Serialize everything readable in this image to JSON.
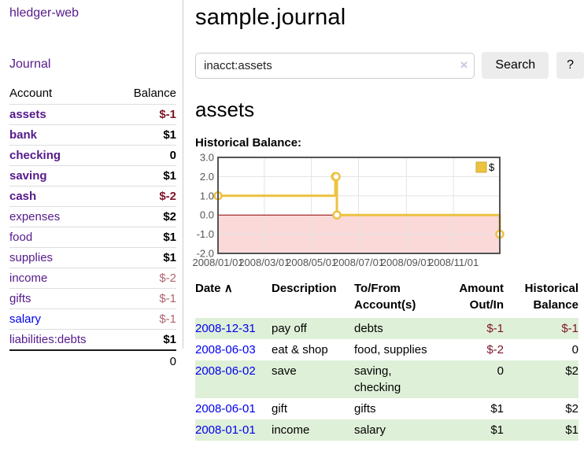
{
  "sidebar": {
    "brand": "hledger-web",
    "nav": {
      "journal": "Journal"
    },
    "accounts": {
      "headers": {
        "account": "Account",
        "balance": "Balance"
      },
      "rows": [
        {
          "name": "assets",
          "balance": "$-1",
          "level": 0,
          "strong": true
        },
        {
          "name": "bank",
          "balance": "$1",
          "level": 1,
          "strong": true
        },
        {
          "name": "checking",
          "balance": "0",
          "level": 2,
          "strong": true
        },
        {
          "name": "saving",
          "balance": "$1",
          "level": 2,
          "strong": true
        },
        {
          "name": "cash",
          "balance": "$-2",
          "level": 1,
          "strong": true
        },
        {
          "name": "expenses",
          "balance": "$2",
          "level": 0,
          "strong": false
        },
        {
          "name": "food",
          "balance": "$1",
          "level": 1,
          "strong": false
        },
        {
          "name": "supplies",
          "balance": "$1",
          "level": 1,
          "strong": false
        },
        {
          "name": "income",
          "balance": "$-2",
          "level": 0,
          "strong": false
        },
        {
          "name": "gifts",
          "balance": "$-1",
          "level": 1,
          "strong": false
        },
        {
          "name": "salary",
          "balance": "$-1",
          "level": 1,
          "strong": false,
          "unvisited": true
        },
        {
          "name": "liabilities:debts",
          "balance": "$1",
          "level": 0,
          "strong": false
        }
      ],
      "total": "0"
    }
  },
  "header": {
    "title": "sample.journal"
  },
  "search": {
    "value": "inacct:assets",
    "clear_icon": "×",
    "button": "Search",
    "help_button": "?"
  },
  "account_page": {
    "title": "assets",
    "chart_label": "Historical Balance:"
  },
  "chart_data": {
    "type": "line",
    "style": "step",
    "title": "Historical Balance:",
    "series": [
      {
        "name": "$",
        "color": "#edc240",
        "points": [
          [
            "2008-01-01",
            1
          ],
          [
            "2008-06-01",
            2
          ],
          [
            "2008-06-02",
            2
          ],
          [
            "2008-06-03",
            0
          ],
          [
            "2008-12-31",
            -1
          ]
        ]
      }
    ],
    "xlim": [
      "2008-01-01",
      "2008-12-31"
    ],
    "ylim": [
      -2,
      3
    ],
    "y_ticks": [
      "3.0",
      "2.0",
      "1.0",
      "0.0",
      "-1.0",
      "-2.0"
    ],
    "x_ticks": [
      {
        "date": "2008-01-01",
        "label": "2008/01/01"
      },
      {
        "date": "2008-03-01",
        "label": "2008/03/01"
      },
      {
        "date": "2008-05-01",
        "label": "2008/05/01"
      },
      {
        "date": "2008-07-01",
        "label": "2008/07/01"
      },
      {
        "date": "2008-09-01",
        "label": "2008/09/01"
      },
      {
        "date": "2008-11-01",
        "label": "2008/11/01"
      }
    ],
    "legend": {
      "label": "$",
      "position": "top-right"
    },
    "grid": true,
    "negative_region_color": "#fbd9d9",
    "zero_line_color": "#8b0000"
  },
  "register": {
    "headers": {
      "date": "Date",
      "sort_indicator": "∧",
      "description": "Description",
      "accounts": "To/From\nAccount(s)",
      "amount": "Amount\nOut/In",
      "balance": "Historical\nBalance"
    },
    "rows": [
      {
        "date": "2008-12-31",
        "description": "pay off",
        "accounts": "debts",
        "amount": "$-1",
        "balance": "$-1"
      },
      {
        "date": "2008-06-03",
        "description": "eat & shop",
        "accounts": "food, supplies",
        "amount": "$-2",
        "balance": "0"
      },
      {
        "date": "2008-06-02",
        "description": "save",
        "accounts": "saving, checking",
        "amount": "0",
        "balance": "$2"
      },
      {
        "date": "2008-06-01",
        "description": "gift",
        "accounts": "gifts",
        "amount": "$1",
        "balance": "$2"
      },
      {
        "date": "2008-01-01",
        "description": "income",
        "accounts": "salary",
        "amount": "$1",
        "balance": "$1"
      }
    ]
  },
  "colors": {
    "link_purple": "#551a8b",
    "link_blue": "#0000ee",
    "negative": "#7e1428",
    "negative_muted": "#b2636f",
    "row_stripe_green": "#dff0d8",
    "chart_series_gold": "#edc240",
    "chart_negative_region": "#fbd9d9",
    "chart_zero_line": "#8b0000"
  }
}
